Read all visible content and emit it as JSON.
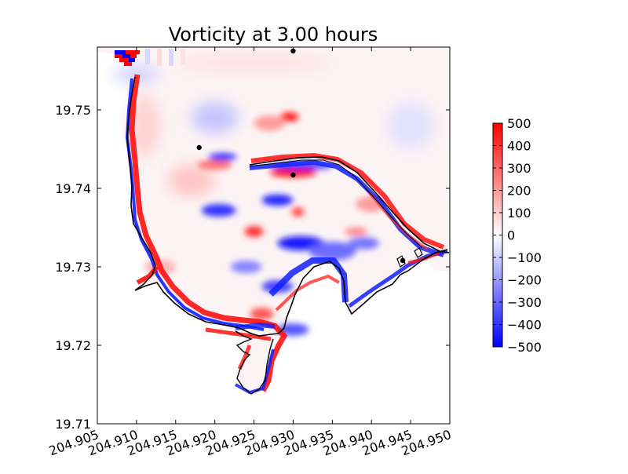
{
  "chart_data": {
    "type": "heatmap",
    "title": "Vorticity at 3.00 hours",
    "xlabel": "",
    "ylabel": "",
    "xlim": [
      204.905,
      204.95
    ],
    "ylim": [
      19.71,
      19.758
    ],
    "x_ticks": [
      "204.905",
      "204.910",
      "204.915",
      "204.920",
      "204.925",
      "204.930",
      "204.935",
      "204.940",
      "204.945",
      "204.950"
    ],
    "y_ticks": [
      "19.71",
      "19.72",
      "19.73",
      "19.74",
      "19.75"
    ],
    "colorbar": {
      "range": [
        -500,
        500
      ],
      "ticks": [
        "500",
        "400",
        "300",
        "200",
        "100",
        "0",
        "−100",
        "−200",
        "−300",
        "−400",
        "−500"
      ],
      "colormap": "bwr",
      "colors": {
        "negative": "#0000ff",
        "zero": "#ffffff",
        "positive": "#ff0000"
      }
    },
    "gauge_points": [
      {
        "x": 204.93,
        "y": 19.7575
      },
      {
        "x": 204.918,
        "y": 19.7452
      },
      {
        "x": 204.93,
        "y": 19.7417
      },
      {
        "x": 204.944,
        "y": 19.7308
      }
    ],
    "vorticity_blobs": [
      {
        "x": 204.9295,
        "y": 19.7491,
        "rx": 0.0012,
        "ry": 0.0006,
        "v": 480
      },
      {
        "x": 204.927,
        "y": 19.7483,
        "rx": 0.002,
        "ry": 0.001,
        "v": 200
      },
      {
        "x": 204.921,
        "y": 19.744,
        "rx": 0.0018,
        "ry": 0.0005,
        "v": -420
      },
      {
        "x": 204.92,
        "y": 19.743,
        "rx": 0.0022,
        "ry": 0.0006,
        "v": 300
      },
      {
        "x": 204.93,
        "y": 19.742,
        "rx": 0.003,
        "ry": 0.0006,
        "v": 480
      },
      {
        "x": 204.931,
        "y": 19.7428,
        "rx": 0.004,
        "ry": 0.0004,
        "v": -450
      },
      {
        "x": 204.928,
        "y": 19.7385,
        "rx": 0.002,
        "ry": 0.0007,
        "v": -460
      },
      {
        "x": 204.9205,
        "y": 19.7372,
        "rx": 0.0022,
        "ry": 0.0008,
        "v": -420
      },
      {
        "x": 204.925,
        "y": 19.7345,
        "rx": 0.0012,
        "ry": 0.0007,
        "v": 420
      },
      {
        "x": 204.9306,
        "y": 19.737,
        "rx": 0.0008,
        "ry": 0.0006,
        "v": 380
      },
      {
        "x": 204.931,
        "y": 19.733,
        "rx": 0.003,
        "ry": 0.0009,
        "v": -480
      },
      {
        "x": 204.935,
        "y": 19.732,
        "rx": 0.003,
        "ry": 0.0012,
        "v": -300
      },
      {
        "x": 204.924,
        "y": 19.73,
        "rx": 0.002,
        "ry": 0.0008,
        "v": -250
      },
      {
        "x": 204.939,
        "y": 19.733,
        "rx": 0.002,
        "ry": 0.0008,
        "v": -280
      },
      {
        "x": 204.938,
        "y": 19.7345,
        "rx": 0.0015,
        "ry": 0.0005,
        "v": 250
      },
      {
        "x": 204.94,
        "y": 19.738,
        "rx": 0.002,
        "ry": 0.001,
        "v": 200
      },
      {
        "x": 204.928,
        "y": 19.7275,
        "rx": 0.002,
        "ry": 0.0008,
        "v": -380
      },
      {
        "x": 204.926,
        "y": 19.724,
        "rx": 0.0015,
        "ry": 0.0008,
        "v": 350
      },
      {
        "x": 204.93,
        "y": 19.722,
        "rx": 0.002,
        "ry": 0.0008,
        "v": -350
      },
      {
        "x": 204.917,
        "y": 19.741,
        "rx": 0.003,
        "ry": 0.002,
        "v": 120
      },
      {
        "x": 204.92,
        "y": 19.749,
        "rx": 0.003,
        "ry": 0.002,
        "v": -120
      },
      {
        "x": 204.91,
        "y": 19.7545,
        "rx": 0.003,
        "ry": 0.001,
        "v": -100
      },
      {
        "x": 204.925,
        "y": 19.756,
        "rx": 0.01,
        "ry": 0.0012,
        "v": 60
      },
      {
        "x": 204.911,
        "y": 19.748,
        "rx": 0.002,
        "ry": 0.004,
        "v": 90
      },
      {
        "x": 204.945,
        "y": 19.748,
        "rx": 0.003,
        "ry": 0.003,
        "v": -60
      },
      {
        "x": 204.913,
        "y": 19.73,
        "rx": 0.002,
        "ry": 0.001,
        "v": 150
      }
    ]
  }
}
